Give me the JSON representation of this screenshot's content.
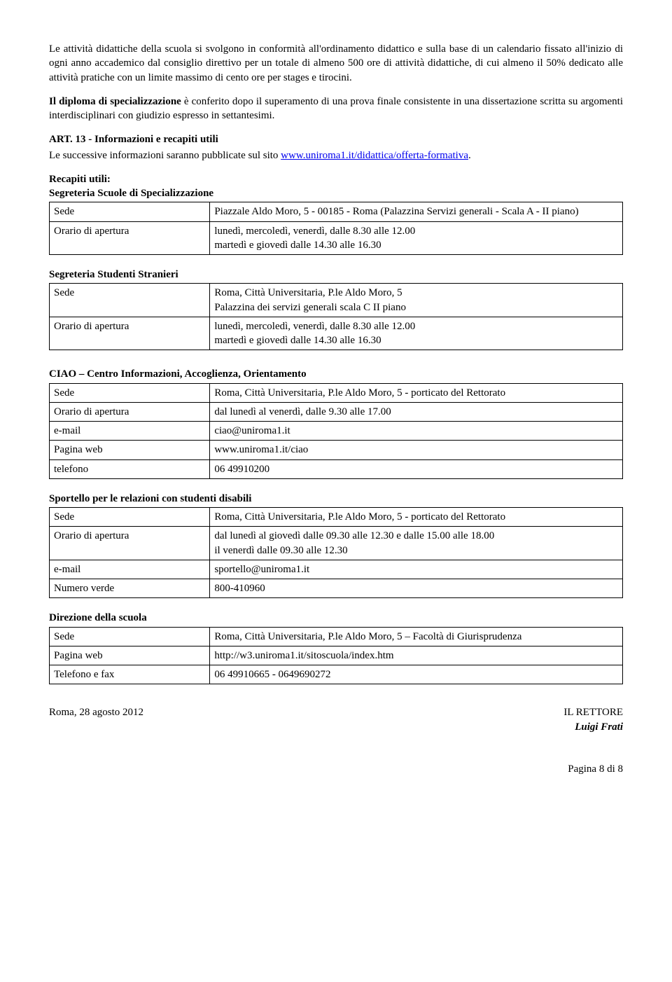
{
  "para1": "Le attività didattiche della scuola si svolgono in conformità all'ordinamento didattico e sulla base di un calendario fissato all'inizio di ogni anno accademico dal consiglio direttivo  per un totale di almeno 500 ore di attività didattiche, di cui almeno il 50% dedicato alle attività pratiche con un limite massimo di cento ore per stages  e tirocini.",
  "para2_b": "Il diploma di specializzazione",
  "para2": " è conferito dopo il superamento di una prova finale consistente in una dissertazione scritta su argomenti interdisciplinari con giudizio espresso in settantesimi.",
  "art13_title": "ART. 13 - Informazioni e recapiti utili",
  "art13_text1": "Le successive informazioni saranno pubblicate sul sito ",
  "art13_link": "www.uniroma1.it/didattica/offerta-formativa",
  "art13_text2": ".",
  "recapiti_title": "Recapiti utili:",
  "t1": {
    "title": "Segreteria Scuole di Specializzazione",
    "rows": [
      [
        "Sede",
        "Piazzale Aldo Moro, 5 - 00185 - Roma (Palazzina Servizi generali - Scala A - II piano)"
      ],
      [
        "Orario di apertura",
        "lunedì, mercoledì, venerdì, dalle 8.30 alle 12.00\nmartedì e giovedì dalle 14.30 alle 16.30"
      ]
    ]
  },
  "t2": {
    "title": "Segreteria Studenti Stranieri",
    "rows": [
      [
        "Sede",
        "Roma, Città Universitaria, P.le Aldo Moro, 5\nPalazzina dei servizi generali scala C II piano"
      ],
      [
        "Orario di apertura",
        "lunedì, mercoledì, venerdì, dalle 8.30 alle 12.00\nmartedì e giovedì dalle 14.30 alle 16.30"
      ]
    ]
  },
  "t3": {
    "title": "CIAO – Centro Informazioni, Accoglienza, Orientamento",
    "rows": [
      [
        "Sede",
        "Roma, Città Universitaria, P.le Aldo Moro, 5 - porticato del Rettorato"
      ],
      [
        "Orario di apertura",
        "dal lunedì al venerdì, dalle 9.30 alle 17.00"
      ],
      [
        "e-mail",
        "ciao@uniroma1.it"
      ],
      [
        "Pagina web",
        "www.uniroma1.it/ciao"
      ],
      [
        "telefono",
        "06 49910200"
      ]
    ]
  },
  "t4": {
    "title": "Sportello per le relazioni con studenti disabili",
    "rows": [
      [
        "Sede",
        "Roma, Città Universitaria, P.le Aldo Moro, 5 - porticato del Rettorato"
      ],
      [
        "Orario di apertura",
        "dal lunedì al giovedì dalle 09.30 alle 12.30 e dalle 15.00 alle 18.00\nil venerdì dalle 09.30 alle 12.30"
      ],
      [
        "e-mail",
        "sportello@uniroma1.it"
      ],
      [
        "Numero verde",
        "800-410960"
      ]
    ]
  },
  "t5": {
    "title": "Direzione della scuola",
    "rows": [
      [
        "Sede",
        "Roma, Città Universitaria, P.le Aldo Moro, 5 – Facoltà di Giurisprudenza"
      ],
      [
        "Pagina web",
        "http://w3.uniroma1.it/sitoscuola/index.htm"
      ],
      [
        "Telefono e fax",
        "06 49910665 - 0649690272"
      ]
    ]
  },
  "date": "Roma,  28 agosto 2012",
  "sig1": "IL RETTORE",
  "sig2": "Luigi Frati",
  "page": "Pagina 8 di 8"
}
